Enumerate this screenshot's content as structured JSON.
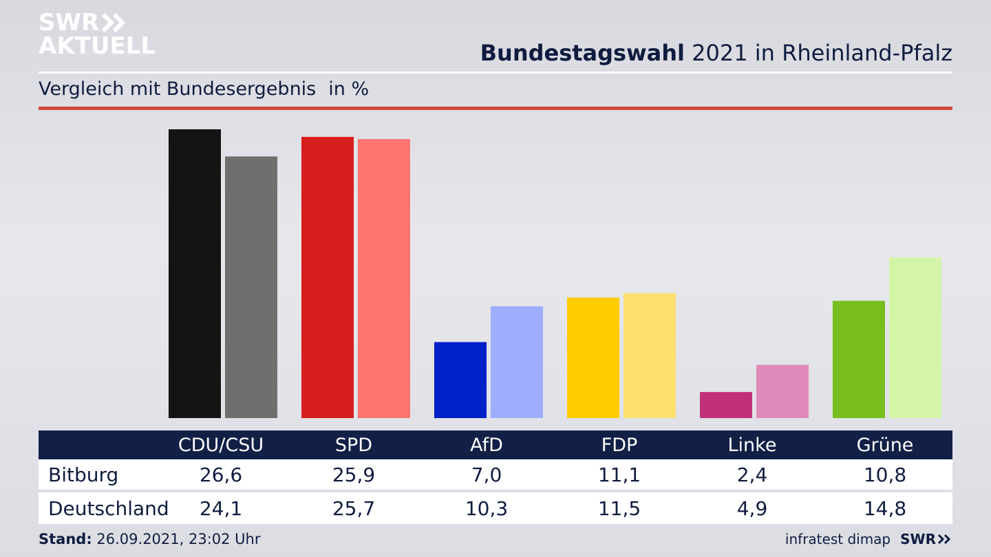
{
  "brand": {
    "line1": "SWR",
    "line2": "AKTUELL"
  },
  "header": {
    "title_bold": "Bundestagswahl",
    "title_rest": " 2021 in Rheinland-Pfalz",
    "subtitle": "Vergleich mit Bundesergebnis",
    "unit": "in %"
  },
  "chart_data": {
    "type": "bar",
    "categories": [
      "CDU/CSU",
      "SPD",
      "AfD",
      "FDP",
      "Linke",
      "Grüne"
    ],
    "series": [
      {
        "name": "Bitburg",
        "values": [
          26.6,
          25.9,
          7.0,
          11.1,
          2.4,
          10.8
        ]
      },
      {
        "name": "Deutschland",
        "values": [
          24.1,
          25.7,
          10.3,
          11.5,
          4.9,
          14.8
        ]
      }
    ],
    "ylim": [
      0,
      26.6
    ],
    "colors": {
      "Bitburg": [
        "#141414",
        "#d71e1e",
        "#0020c8",
        "#ffcc00",
        "#c0307a",
        "#77be1e"
      ],
      "Deutschland": [
        "#706f6d",
        "#ff7570",
        "#9fadff",
        "#fde06f",
        "#df8ab8",
        "#d4f5a8"
      ]
    }
  },
  "table": {
    "headers": [
      "CDU/CSU",
      "SPD",
      "AfD",
      "FDP",
      "Linke",
      "Grüne"
    ],
    "rows": [
      {
        "label": "Bitburg",
        "values": [
          "26,6",
          "25,9",
          "7,0",
          "11,1",
          "2,4",
          "10,8"
        ]
      },
      {
        "label": "Deutschland",
        "values": [
          "24,1",
          "25,7",
          "10,3",
          "11,5",
          "4,9",
          "14,8"
        ]
      }
    ]
  },
  "footer": {
    "stand_label": "Stand:",
    "stand_value": " 26.09.2021, 23:02 Uhr",
    "source": "infratest dimap",
    "brand": "SWR"
  }
}
